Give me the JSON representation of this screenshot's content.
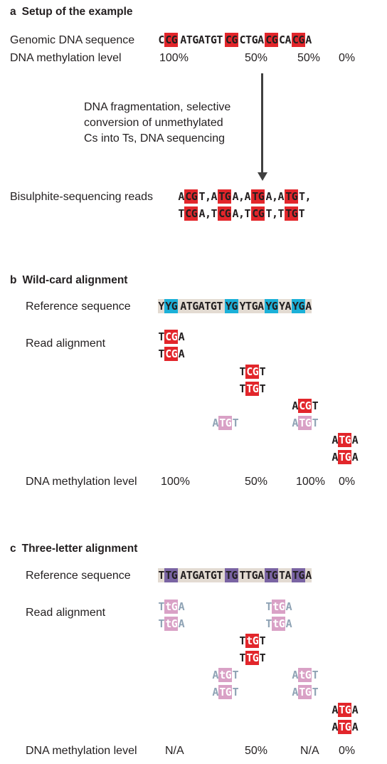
{
  "panel_a": {
    "letter": "a",
    "title": "Setup of the example",
    "genomic_label": "Genomic DNA sequence",
    "methylation_label": "DNA methylation level",
    "levels": [
      "100%",
      "50%",
      "50%",
      "0%"
    ],
    "process_text": [
      "DNA fragmentation, selective",
      "conversion of unmethylated",
      "Cs into Ts, DNA sequencing"
    ],
    "reads_label": "Bisulphite-sequencing reads"
  },
  "panel_b": {
    "letter": "b",
    "title": "Wild-card alignment",
    "reference_label": "Reference sequence",
    "read_label": "Read alignment",
    "methylation_label": "DNA methylation level",
    "levels": [
      "100%",
      "50%",
      "100%",
      "0%"
    ]
  },
  "panel_c": {
    "letter": "c",
    "title": "Three-letter alignment",
    "reference_label": "Reference sequence",
    "read_label": "Read alignment",
    "methylation_label": "DNA methylation level",
    "levels": [
      "N/A",
      "50%",
      "N/A",
      "0%"
    ]
  },
  "sequences": {
    "genomic": [
      {
        "t": "C"
      },
      {
        "t": "CG",
        "c": "red"
      },
      {
        "t": "ATGATGT"
      },
      {
        "t": "CG",
        "c": "red"
      },
      {
        "t": "CTGA"
      },
      {
        "t": "CG",
        "c": "red"
      },
      {
        "t": "CA"
      },
      {
        "t": "CG",
        "c": "red"
      },
      {
        "t": "A"
      }
    ],
    "reads_row1": [
      {
        "t": "A"
      },
      {
        "t": "CG",
        "c": "red"
      },
      {
        "t": "T,A"
      },
      {
        "t": "TG",
        "c": "red"
      },
      {
        "t": "A,A"
      },
      {
        "t": "TG",
        "c": "red"
      },
      {
        "t": "A,A"
      },
      {
        "t": "TG",
        "c": "red"
      },
      {
        "t": "T,"
      }
    ],
    "reads_row2": [
      {
        "t": "T"
      },
      {
        "t": "CG",
        "c": "red"
      },
      {
        "t": "A,T"
      },
      {
        "t": "CG",
        "c": "red"
      },
      {
        "t": "A,T"
      },
      {
        "t": "CG",
        "c": "red"
      },
      {
        "t": "T,T"
      },
      {
        "t": "TG",
        "c": "red"
      },
      {
        "t": "T"
      }
    ],
    "ref_b": [
      {
        "t": "Y"
      },
      {
        "t": "YG",
        "c": "cyan"
      },
      {
        "t": "ATGATGT"
      },
      {
        "t": "YG",
        "c": "cyan"
      },
      {
        "t": "YTGA"
      },
      {
        "t": "YG",
        "c": "cyan"
      },
      {
        "t": "YA"
      },
      {
        "t": "YG",
        "c": "cyan"
      },
      {
        "t": "A"
      }
    ],
    "b_r1": [
      {
        "t": "T"
      },
      {
        "t": "CG",
        "c": "redw"
      },
      {
        "t": "A"
      }
    ],
    "b_r2": [
      {
        "t": "T"
      },
      {
        "t": "CG",
        "c": "redw"
      },
      {
        "t": "A"
      }
    ],
    "b_r3": [
      {
        "t": "T"
      },
      {
        "t": "CG",
        "c": "redw"
      },
      {
        "t": "T"
      }
    ],
    "b_r4": [
      {
        "t": "T"
      },
      {
        "t": "TG",
        "c": "redw"
      },
      {
        "t": "T"
      }
    ],
    "b_r5": [
      {
        "t": "A"
      },
      {
        "t": "CG",
        "c": "redw"
      },
      {
        "t": "T"
      }
    ],
    "b_r6a": [
      {
        "t": "A",
        "c": "faded"
      },
      {
        "t": "TG",
        "c": "pink"
      },
      {
        "t": "T",
        "c": "faded"
      }
    ],
    "b_r6b": [
      {
        "t": "A",
        "c": "faded"
      },
      {
        "t": "TG",
        "c": "pink"
      },
      {
        "t": "T",
        "c": "faded"
      }
    ],
    "b_r7": [
      {
        "t": "A"
      },
      {
        "t": "TG",
        "c": "redw"
      },
      {
        "t": "A"
      }
    ],
    "b_r8": [
      {
        "t": "A"
      },
      {
        "t": "TG",
        "c": "redw"
      },
      {
        "t": "A"
      }
    ],
    "ref_c": [
      {
        "t": "T"
      },
      {
        "t": "TG",
        "c": "pur"
      },
      {
        "t": "ATGATGT"
      },
      {
        "t": "TG",
        "c": "pur"
      },
      {
        "t": "TTGA"
      },
      {
        "t": "TG",
        "c": "pur"
      },
      {
        "t": "TA"
      },
      {
        "t": "TG",
        "c": "pur"
      },
      {
        "t": "A"
      }
    ],
    "c_r1a": [
      {
        "t": "T",
        "c": "faded"
      },
      {
        "t": "tG",
        "c": "pink"
      },
      {
        "t": "A",
        "c": "faded"
      }
    ],
    "c_r1b": [
      {
        "t": "T",
        "c": "faded"
      },
      {
        "t": "tG",
        "c": "pink"
      },
      {
        "t": "A",
        "c": "faded"
      }
    ],
    "c_r2a": [
      {
        "t": "T",
        "c": "faded"
      },
      {
        "t": "tG",
        "c": "pink"
      },
      {
        "t": "A",
        "c": "faded"
      }
    ],
    "c_r2b": [
      {
        "t": "T",
        "c": "faded"
      },
      {
        "t": "tG",
        "c": "pink"
      },
      {
        "t": "A",
        "c": "faded"
      }
    ],
    "c_r3": [
      {
        "t": "T"
      },
      {
        "t": "tG",
        "c": "redw"
      },
      {
        "t": "T"
      }
    ],
    "c_r4": [
      {
        "t": "T"
      },
      {
        "t": "TG",
        "c": "redw"
      },
      {
        "t": "T"
      }
    ],
    "c_r5a": [
      {
        "t": "A",
        "c": "faded"
      },
      {
        "t": "tG",
        "c": "pink"
      },
      {
        "t": "T",
        "c": "faded"
      }
    ],
    "c_r5b": [
      {
        "t": "A",
        "c": "faded"
      },
      {
        "t": "tG",
        "c": "pink"
      },
      {
        "t": "T",
        "c": "faded"
      }
    ],
    "c_r6a": [
      {
        "t": "A",
        "c": "faded"
      },
      {
        "t": "TG",
        "c": "pink"
      },
      {
        "t": "T",
        "c": "faded"
      }
    ],
    "c_r6b": [
      {
        "t": "A",
        "c": "faded"
      },
      {
        "t": "TG",
        "c": "pink"
      },
      {
        "t": "T",
        "c": "faded"
      }
    ],
    "c_r7": [
      {
        "t": "A"
      },
      {
        "t": "TG",
        "c": "redw"
      },
      {
        "t": "A"
      }
    ],
    "c_r8": [
      {
        "t": "A"
      },
      {
        "t": "TG",
        "c": "redw"
      },
      {
        "t": "A"
      }
    ]
  },
  "colors": {
    "red": "#e2262b",
    "cyan": "#1bb0d8",
    "purple": "#7a64a3",
    "pink": "#d9a1c6",
    "reference_background": "#e3dbd2"
  }
}
